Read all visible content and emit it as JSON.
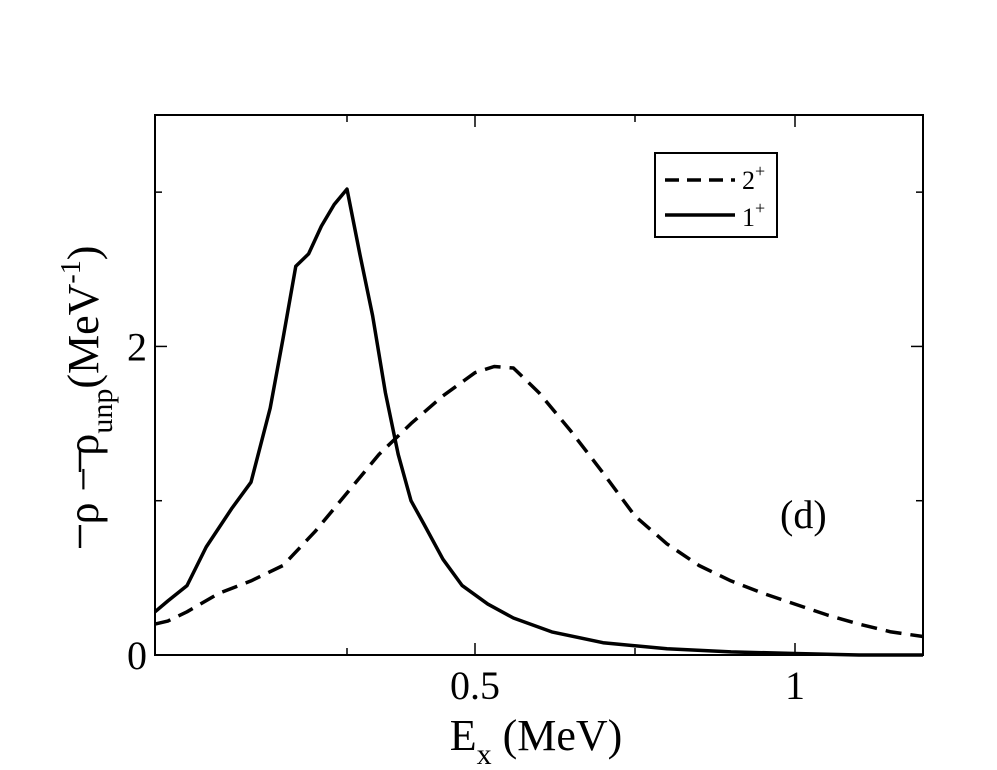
{
  "chart_data": {
    "type": "line",
    "xlabel_main": "E",
    "xlabel_sub": "x",
    "xlabel_unit": " (MeV)",
    "ylabel_rho1": "ρ",
    "ylabel_minus": " − ",
    "ylabel_rho2": "ρ",
    "ylabel_sub": "unp",
    "ylabel_unit": "(MeV",
    "ylabel_sup": "-1",
    "ylabel_close": ")",
    "xlim": [
      0.0,
      1.2
    ],
    "ylim": [
      0,
      3.5
    ],
    "x_ticks": [
      0.5,
      1
    ],
    "x_tick_labels": [
      "0.5",
      "1"
    ],
    "x_minor_ticks": [
      0.3,
      0.75
    ],
    "y_ticks": [
      0,
      2
    ],
    "y_tick_labels": [
      "0",
      "2"
    ],
    "y_minor_ticks": [
      1,
      3
    ],
    "annotation": "(d)",
    "legend": {
      "position": "top-right",
      "entries": [
        {
          "base": "2",
          "sup": "+",
          "style": "dashed"
        },
        {
          "base": "1",
          "sup": "+",
          "style": "solid"
        }
      ]
    },
    "series": [
      {
        "label": "2+",
        "style": "dashed",
        "x": [
          0.0,
          0.02,
          0.05,
          0.1,
          0.15,
          0.2,
          0.25,
          0.3,
          0.35,
          0.4,
          0.45,
          0.5,
          0.53,
          0.56,
          0.6,
          0.65,
          0.7,
          0.75,
          0.8,
          0.85,
          0.9,
          0.95,
          1.0,
          1.05,
          1.1,
          1.15,
          1.2
        ],
        "y": [
          0.2,
          0.22,
          0.28,
          0.4,
          0.48,
          0.58,
          0.8,
          1.05,
          1.3,
          1.5,
          1.68,
          1.83,
          1.87,
          1.86,
          1.7,
          1.45,
          1.18,
          0.9,
          0.72,
          0.58,
          0.48,
          0.4,
          0.33,
          0.26,
          0.2,
          0.15,
          0.12
        ]
      },
      {
        "label": "1+",
        "style": "solid",
        "x": [
          0.0,
          0.02,
          0.05,
          0.08,
          0.12,
          0.15,
          0.18,
          0.2,
          0.22,
          0.24,
          0.26,
          0.28,
          0.3,
          0.32,
          0.34,
          0.36,
          0.38,
          0.4,
          0.42,
          0.45,
          0.48,
          0.52,
          0.56,
          0.62,
          0.7,
          0.8,
          0.9,
          1.0,
          1.1,
          1.2
        ],
        "y": [
          0.28,
          0.35,
          0.45,
          0.7,
          0.95,
          1.12,
          1.6,
          2.05,
          2.52,
          2.6,
          2.78,
          2.92,
          3.02,
          2.6,
          2.2,
          1.7,
          1.3,
          1.0,
          0.85,
          0.62,
          0.45,
          0.33,
          0.24,
          0.15,
          0.08,
          0.04,
          0.02,
          0.01,
          0.0,
          0.0
        ]
      }
    ]
  }
}
